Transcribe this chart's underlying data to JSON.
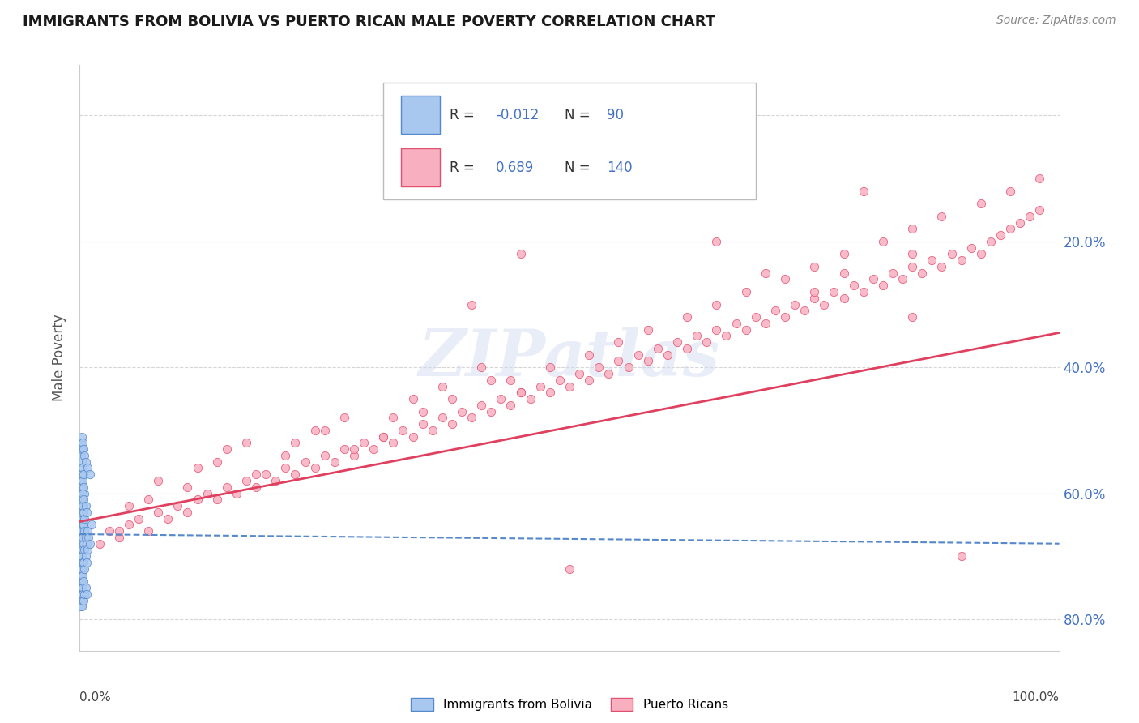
{
  "title": "IMMIGRANTS FROM BOLIVIA VS PUERTO RICAN MALE POVERTY CORRELATION CHART",
  "source": "Source: ZipAtlas.com",
  "ylabel": "Male Poverty",
  "color_bolivia": "#a8c8f0",
  "color_edge_bolivia": "#5588cc",
  "color_puertorico": "#f8b0c0",
  "color_edge_puertorico": "#e05070",
  "color_line_bolivia": "#5588cc",
  "color_line_puertorico": "#e04060",
  "background_color": "#ffffff",
  "grid_color": "#bbbbbb",
  "legend_label1": "Immigrants from Bolivia",
  "legend_label2": "Puerto Ricans",
  "xlim": [
    0.0,
    1.0
  ],
  "ylim": [
    -0.05,
    0.88
  ],
  "yticks": [
    0.0,
    0.2,
    0.4,
    0.6,
    0.8
  ],
  "ytick_right_labels": [
    "80.0%",
    "60.0%",
    "40.0%",
    "20.0%",
    ""
  ],
  "bolivia_x": [
    0.001,
    0.001,
    0.001,
    0.001,
    0.001,
    0.001,
    0.001,
    0.001,
    0.001,
    0.001,
    0.002,
    0.002,
    0.002,
    0.002,
    0.002,
    0.002,
    0.002,
    0.002,
    0.002,
    0.002,
    0.002,
    0.002,
    0.002,
    0.002,
    0.002,
    0.003,
    0.003,
    0.003,
    0.003,
    0.003,
    0.003,
    0.003,
    0.003,
    0.004,
    0.004,
    0.004,
    0.004,
    0.004,
    0.005,
    0.005,
    0.005,
    0.006,
    0.006,
    0.007,
    0.007,
    0.008,
    0.008,
    0.009,
    0.01,
    0.012,
    0.001,
    0.001,
    0.002,
    0.002,
    0.002,
    0.003,
    0.003,
    0.004,
    0.004,
    0.005,
    0.001,
    0.001,
    0.002,
    0.002,
    0.003,
    0.003,
    0.004,
    0.005,
    0.006,
    0.007,
    0.001,
    0.002,
    0.002,
    0.003,
    0.003,
    0.004,
    0.004,
    0.005,
    0.006,
    0.007,
    0.001,
    0.001,
    0.002,
    0.002,
    0.003,
    0.004,
    0.005,
    0.006,
    0.008,
    0.01
  ],
  "bolivia_y": [
    0.05,
    0.06,
    0.07,
    0.08,
    0.1,
    0.12,
    0.13,
    0.14,
    0.15,
    0.16,
    0.04,
    0.05,
    0.06,
    0.07,
    0.08,
    0.09,
    0.1,
    0.11,
    0.12,
    0.13,
    0.14,
    0.15,
    0.16,
    0.17,
    0.18,
    0.05,
    0.07,
    0.09,
    0.11,
    0.13,
    0.15,
    0.17,
    0.19,
    0.06,
    0.09,
    0.12,
    0.15,
    0.18,
    0.08,
    0.11,
    0.14,
    0.1,
    0.13,
    0.09,
    0.12,
    0.11,
    0.14,
    0.13,
    0.12,
    0.15,
    0.2,
    0.22,
    0.21,
    0.23,
    0.25,
    0.22,
    0.24,
    0.21,
    0.23,
    0.2,
    0.03,
    0.02,
    0.03,
    0.02,
    0.03,
    0.04,
    0.03,
    0.04,
    0.05,
    0.04,
    0.17,
    0.18,
    0.19,
    0.18,
    0.2,
    0.17,
    0.19,
    0.16,
    0.18,
    0.17,
    0.28,
    0.26,
    0.27,
    0.29,
    0.28,
    0.27,
    0.26,
    0.25,
    0.24,
    0.23
  ],
  "pr_x": [
    0.02,
    0.03,
    0.04,
    0.05,
    0.06,
    0.07,
    0.08,
    0.09,
    0.1,
    0.11,
    0.12,
    0.13,
    0.14,
    0.15,
    0.16,
    0.17,
    0.18,
    0.19,
    0.2,
    0.21,
    0.22,
    0.23,
    0.24,
    0.25,
    0.26,
    0.27,
    0.28,
    0.29,
    0.3,
    0.31,
    0.32,
    0.33,
    0.34,
    0.35,
    0.36,
    0.37,
    0.38,
    0.39,
    0.4,
    0.41,
    0.42,
    0.43,
    0.44,
    0.45,
    0.46,
    0.47,
    0.48,
    0.49,
    0.5,
    0.51,
    0.52,
    0.53,
    0.54,
    0.55,
    0.56,
    0.57,
    0.58,
    0.59,
    0.6,
    0.61,
    0.62,
    0.63,
    0.64,
    0.65,
    0.66,
    0.67,
    0.68,
    0.69,
    0.7,
    0.71,
    0.72,
    0.73,
    0.74,
    0.75,
    0.76,
    0.77,
    0.78,
    0.79,
    0.8,
    0.81,
    0.82,
    0.83,
    0.84,
    0.85,
    0.86,
    0.87,
    0.88,
    0.89,
    0.9,
    0.91,
    0.92,
    0.93,
    0.94,
    0.95,
    0.96,
    0.97,
    0.98,
    0.05,
    0.08,
    0.12,
    0.15,
    0.18,
    0.22,
    0.25,
    0.28,
    0.32,
    0.35,
    0.38,
    0.42,
    0.45,
    0.48,
    0.52,
    0.55,
    0.58,
    0.62,
    0.65,
    0.68,
    0.72,
    0.75,
    0.78,
    0.82,
    0.85,
    0.88,
    0.92,
    0.95,
    0.98,
    0.04,
    0.07,
    0.11,
    0.14,
    0.17,
    0.21,
    0.24,
    0.27,
    0.31,
    0.34,
    0.37,
    0.41,
    0.44
  ],
  "pr_y": [
    0.12,
    0.14,
    0.13,
    0.15,
    0.16,
    0.14,
    0.17,
    0.16,
    0.18,
    0.17,
    0.19,
    0.2,
    0.19,
    0.21,
    0.2,
    0.22,
    0.21,
    0.23,
    0.22,
    0.24,
    0.23,
    0.25,
    0.24,
    0.26,
    0.25,
    0.27,
    0.26,
    0.28,
    0.27,
    0.29,
    0.28,
    0.3,
    0.29,
    0.31,
    0.3,
    0.32,
    0.31,
    0.33,
    0.32,
    0.34,
    0.33,
    0.35,
    0.34,
    0.36,
    0.35,
    0.37,
    0.36,
    0.38,
    0.37,
    0.39,
    0.38,
    0.4,
    0.39,
    0.41,
    0.4,
    0.42,
    0.41,
    0.43,
    0.42,
    0.44,
    0.43,
    0.45,
    0.44,
    0.46,
    0.45,
    0.47,
    0.46,
    0.48,
    0.47,
    0.49,
    0.48,
    0.5,
    0.49,
    0.51,
    0.5,
    0.52,
    0.51,
    0.53,
    0.52,
    0.54,
    0.53,
    0.55,
    0.54,
    0.56,
    0.55,
    0.57,
    0.56,
    0.58,
    0.57,
    0.59,
    0.58,
    0.6,
    0.61,
    0.62,
    0.63,
    0.64,
    0.65,
    0.18,
    0.22,
    0.24,
    0.27,
    0.23,
    0.28,
    0.3,
    0.27,
    0.32,
    0.33,
    0.35,
    0.38,
    0.36,
    0.4,
    0.42,
    0.44,
    0.46,
    0.48,
    0.5,
    0.52,
    0.54,
    0.56,
    0.58,
    0.6,
    0.62,
    0.64,
    0.66,
    0.68,
    0.7,
    0.14,
    0.19,
    0.21,
    0.25,
    0.28,
    0.26,
    0.3,
    0.32,
    0.29,
    0.35,
    0.37,
    0.4,
    0.38
  ],
  "pr_outliers_x": [
    0.55,
    0.6,
    0.65,
    0.7,
    0.75,
    0.8,
    0.85,
    0.9,
    0.5,
    0.45,
    0.4,
    0.85,
    0.78
  ],
  "pr_outliers_y": [
    0.75,
    0.82,
    0.6,
    0.55,
    0.52,
    0.68,
    0.48,
    0.1,
    0.08,
    0.58,
    0.5,
    0.58,
    0.55
  ],
  "bolivia_trend_x0": 0.0,
  "bolivia_trend_x1": 1.0,
  "bolivia_trend_y0": 0.135,
  "bolivia_trend_y1": 0.12,
  "pr_trend_x0": 0.0,
  "pr_trend_x1": 1.0,
  "pr_trend_y0": 0.155,
  "pr_trend_y1": 0.455
}
